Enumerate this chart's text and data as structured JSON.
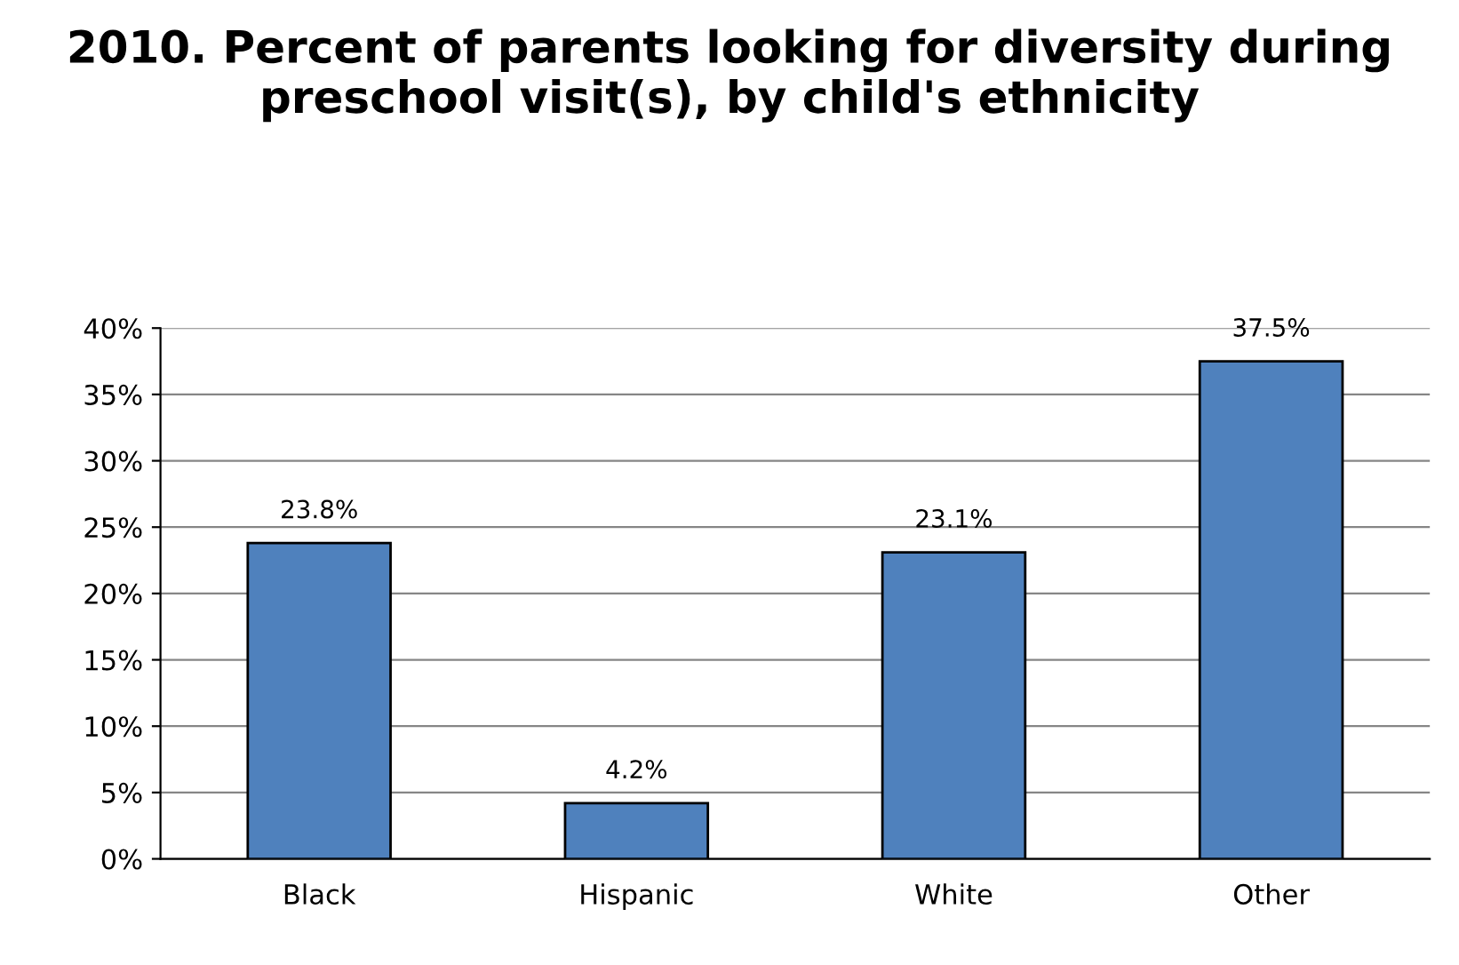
{
  "chart_data": {
    "type": "bar",
    "title": "2010. Percent of parents looking for diversity during preschool visit(s), by child's ethnicity",
    "categories": [
      "Black",
      "Hispanic",
      "White",
      "Other"
    ],
    "values": [
      23.8,
      4.2,
      23.1,
      37.5
    ],
    "color": "#4f81bd",
    "value_labels": [
      "23.8%",
      "4.2%",
      "23.1%",
      "37.5%"
    ],
    "ylim": [
      0,
      40
    ],
    "yticks": [
      {
        "value": 0,
        "label": "0%"
      },
      {
        "value": 5,
        "label": "5%"
      },
      {
        "value": 10,
        "label": "10%"
      },
      {
        "value": 15,
        "label": "15%"
      },
      {
        "value": 20,
        "label": "20%"
      },
      {
        "value": 25,
        "label": "25%"
      },
      {
        "value": 30,
        "label": "30%"
      },
      {
        "value": 35,
        "label": "35%"
      },
      {
        "value": 40,
        "label": "40%"
      }
    ],
    "grid": "y",
    "legend": false
  }
}
